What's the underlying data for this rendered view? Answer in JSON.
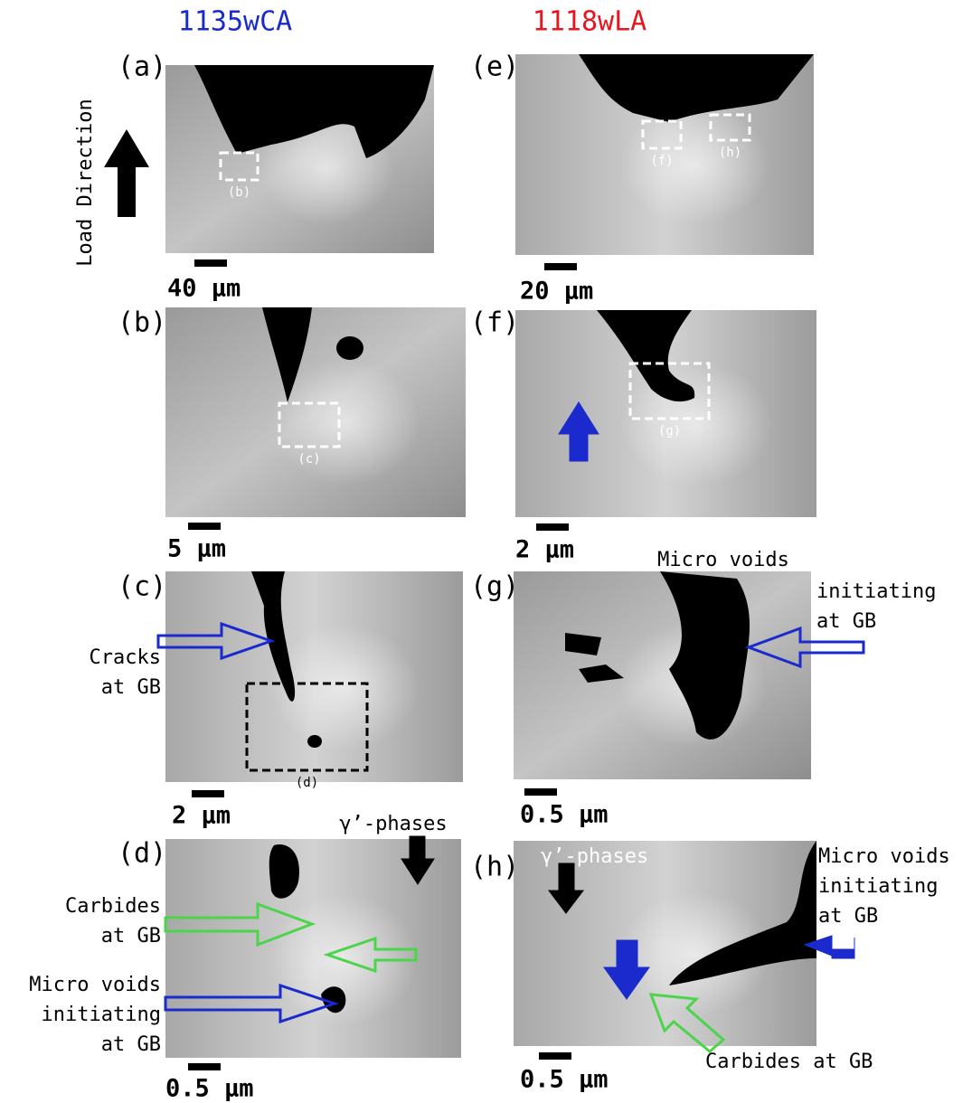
{
  "columns": [
    {
      "title": "1135wCA"
    },
    {
      "title": "1118wLA"
    }
  ],
  "load_direction": "Load Direction",
  "panels": [
    {
      "label": "(a)",
      "scale": "40 μm",
      "insets": [
        "(b)"
      ]
    },
    {
      "label": "(b)",
      "scale": "5 μm",
      "insets": [
        "(c)"
      ]
    },
    {
      "label": "(c)",
      "scale": "2 μm",
      "insets": [
        "(d)"
      ]
    },
    {
      "label": "(d)",
      "scale": "0.5 μm",
      "insets": []
    },
    {
      "label": "(e)",
      "scale": "20 μm",
      "insets": [
        "(f)",
        "(h)"
      ]
    },
    {
      "label": "(f)",
      "scale": "2 μm",
      "insets": [
        "(g)"
      ]
    },
    {
      "label": "(g)",
      "scale": "0.5 μm",
      "insets": []
    },
    {
      "label": "(h)",
      "scale": "0.5 μm",
      "insets": []
    }
  ],
  "annotations": [
    {
      "lines": [
        "Cracks",
        "at GB"
      ]
    },
    {
      "lines": [
        "Micro voids"
      ]
    },
    {
      "lines": [
        "initiating",
        "at GB"
      ]
    },
    {
      "lines": [
        "γ’-phases"
      ]
    },
    {
      "lines": [
        "Carbides",
        "at GB"
      ]
    },
    {
      "lines": [
        "Micro voids",
        "initiating",
        "at GB"
      ]
    },
    {
      "lines": [
        "γ’-phases"
      ]
    },
    {
      "lines": [
        "Micro voids",
        "initiating",
        "at GB"
      ]
    },
    {
      "lines": [
        "Carbides at GB"
      ]
    }
  ]
}
